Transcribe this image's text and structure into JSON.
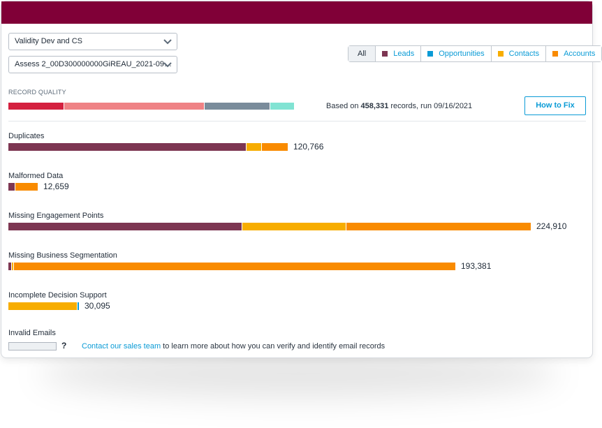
{
  "colors": {
    "header": "#800037",
    "leads": "#7d3652",
    "opportunities": "#0a9bd6",
    "contacts": "#f7ad00",
    "accounts": "#f98b00",
    "quality": [
      "#d4203f",
      "#ef8285",
      "#7a8c9b",
      "#81e3d3"
    ]
  },
  "selectors": {
    "workspace": "Validity Dev and CS",
    "assessment": "Assess 2_00D300000000GiREAU_2021-09…"
  },
  "filters": [
    {
      "label": "All",
      "key": "all"
    },
    {
      "label": "Leads",
      "key": "leads"
    },
    {
      "label": "Opportunities",
      "key": "opportunities"
    },
    {
      "label": "Contacts",
      "key": "contacts"
    },
    {
      "label": "Accounts",
      "key": "accounts"
    }
  ],
  "record_quality": {
    "label": "RECORD QUALITY",
    "segments": [
      0.195,
      0.49,
      0.23,
      0.085
    ],
    "based_prefix": "Based on ",
    "record_count": "458,331",
    "based_suffix": " records, run 09/16/2021"
  },
  "how_to_fix": "How to Fix",
  "categories": [
    {
      "label": "Duplicates",
      "value": "120,766",
      "parts": [
        {
          "key": "leads",
          "value": 68000
        },
        {
          "key": "contacts",
          "value": 4200
        },
        {
          "key": "accounts",
          "value": 7400
        }
      ]
    },
    {
      "label": "Malformed Data",
      "value": "12,659",
      "parts": [
        {
          "key": "leads",
          "value": 1800
        },
        {
          "key": "accounts",
          "value": 6300
        }
      ]
    },
    {
      "label": "Missing Engagement Points",
      "value": "224,910",
      "parts": [
        {
          "key": "leads",
          "value": 66800
        },
        {
          "key": "contacts",
          "value": 29500
        },
        {
          "key": "accounts",
          "value": 52800
        }
      ]
    },
    {
      "label": "Missing Business Segmentation",
      "value": "193,381",
      "parts": [
        {
          "key": "leads",
          "value": 800
        },
        {
          "key": "contacts",
          "value": 300
        },
        {
          "key": "accounts",
          "value": 126400
        }
      ]
    },
    {
      "label": "Incomplete Decision Support",
      "value": "30,095",
      "parts": [
        {
          "key": "contacts",
          "value": 19600
        },
        {
          "key": "opportunities",
          "value": 150
        }
      ]
    }
  ],
  "invalid_emails": {
    "label": "Invalid Emails",
    "unknown": "?",
    "link_text": "Contact our sales team",
    "rest_text": " to learn more about how you can verify and identify email records"
  }
}
